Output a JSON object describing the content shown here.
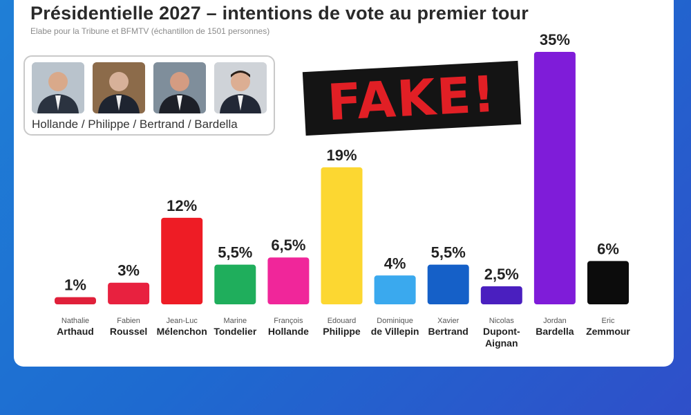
{
  "header": {
    "title": "Présidentielle 2027 – intentions de vote au premier tour",
    "subtitle": "Elabe pour la Tribune et  BFMTV (échantillon de 1501 personnes)"
  },
  "scenario": {
    "caption": "Hollande / Philippe / Bertrand / Bardella",
    "photos": [
      "Hollande",
      "Philippe",
      "Bertrand",
      "Bardella"
    ]
  },
  "stamp": {
    "text": "FAKE!"
  },
  "chart_data": {
    "type": "bar",
    "categories": [
      [
        "Nathalie",
        "Arthaud"
      ],
      [
        "Fabien",
        "Roussel"
      ],
      [
        "Jean-Luc",
        "Mélenchon"
      ],
      [
        "Marine",
        "Tondelier"
      ],
      [
        "François",
        "Hollande"
      ],
      [
        "Edouard",
        "Philippe"
      ],
      [
        "Dominique",
        "de Villepin"
      ],
      [
        "Xavier",
        "Bertrand"
      ],
      [
        "Nicolas",
        "Dupont-",
        "Aignan"
      ],
      [
        "Jordan",
        "Bardella"
      ],
      [
        "Eric",
        "Zemmour"
      ]
    ],
    "values": [
      1,
      3,
      12,
      5.5,
      6.5,
      19,
      4,
      5.5,
      2.5,
      35,
      6
    ],
    "labels": [
      "1%",
      "3%",
      "12%",
      "5,5%",
      "6,5%",
      "19%",
      "4%",
      "5,5%",
      "2,5%",
      "35%",
      "6%"
    ],
    "colors": [
      "#e0203a",
      "#e8213f",
      "#ee1c25",
      "#1fae5c",
      "#f0269a",
      "#fcd731",
      "#3aa9ee",
      "#1560c8",
      "#4a1fbf",
      "#7f1cd9",
      "#0c0c0c"
    ],
    "ylim": [
      0,
      35
    ]
  }
}
